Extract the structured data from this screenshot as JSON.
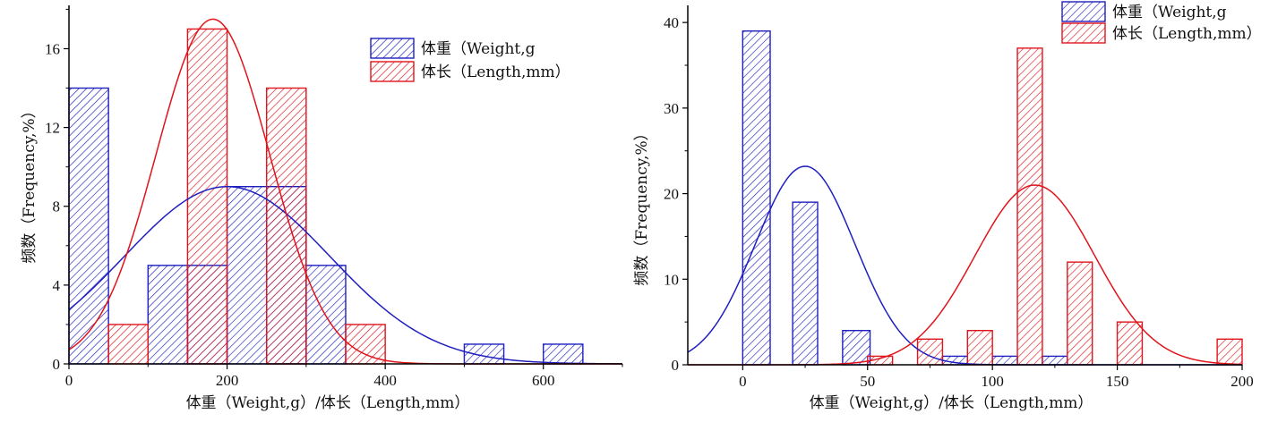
{
  "colors": {
    "weight": "#1f1fbf",
    "length": "#e0141b",
    "axis": "#000000"
  },
  "chart_data": [
    {
      "type": "bar",
      "xlabel": "体重（Weight,g）/体长（Length,mm）",
      "ylabel": "频数（Frequency,%）",
      "xlim": [
        0,
        700
      ],
      "ylim": [
        0,
        18.2
      ],
      "xticks": [
        0,
        200,
        400,
        600
      ],
      "yticks": [
        0,
        4,
        8,
        12,
        16
      ],
      "legend_position": "top-right",
      "series": [
        {
          "name": "体重（Weight,g",
          "bins": [
            [
              0,
              50,
              14
            ],
            [
              100,
              150,
              5
            ],
            [
              150,
              200,
              5
            ],
            [
              200,
              250,
              9
            ],
            [
              250,
              300,
              9
            ],
            [
              300,
              350,
              5
            ],
            [
              500,
              550,
              1
            ],
            [
              600,
              650,
              1
            ]
          ],
          "fit": {
            "mean": 200,
            "sd": 130,
            "peak": 9.0
          }
        },
        {
          "name": "体长（Length,mm）",
          "bins": [
            [
              50,
              100,
              2
            ],
            [
              150,
              200,
              17
            ],
            [
              250,
              300,
              14
            ],
            [
              350,
              400,
              2
            ]
          ],
          "fit": {
            "mean": 182,
            "sd": 72,
            "peak": 17.5
          }
        }
      ]
    },
    {
      "type": "bar",
      "xlabel": "体重（Weight,g）/体长（Length,mm）",
      "ylabel": "频数（Frequency,%）",
      "xlim": [
        -22,
        200
      ],
      "ylim": [
        0,
        42
      ],
      "xticks": [
        0,
        50,
        100,
        150,
        200
      ],
      "yticks": [
        0,
        10,
        20,
        30,
        40
      ],
      "legend_position": "top-right",
      "series": [
        {
          "name": "体重（Weight,g",
          "bins": [
            [
              0,
              11,
              39
            ],
            [
              20,
              30,
              19
            ],
            [
              40,
              51,
              4
            ],
            [
              80,
              90,
              1
            ],
            [
              100,
              110,
              1
            ],
            [
              120,
              130,
              1
            ]
          ],
          "fit": {
            "mean": 25,
            "sd": 20,
            "peak": 23.2
          }
        },
        {
          "name": "体长（Length,mm）",
          "bins": [
            [
              50,
              60,
              1
            ],
            [
              70,
              80,
              3
            ],
            [
              90,
              100,
              4
            ],
            [
              110,
              120,
              37
            ],
            [
              130,
              140,
              12
            ],
            [
              150,
              160,
              5
            ],
            [
              190,
              200,
              3
            ]
          ],
          "fit": {
            "mean": 117,
            "sd": 24,
            "peak": 21.0
          }
        }
      ]
    }
  ]
}
